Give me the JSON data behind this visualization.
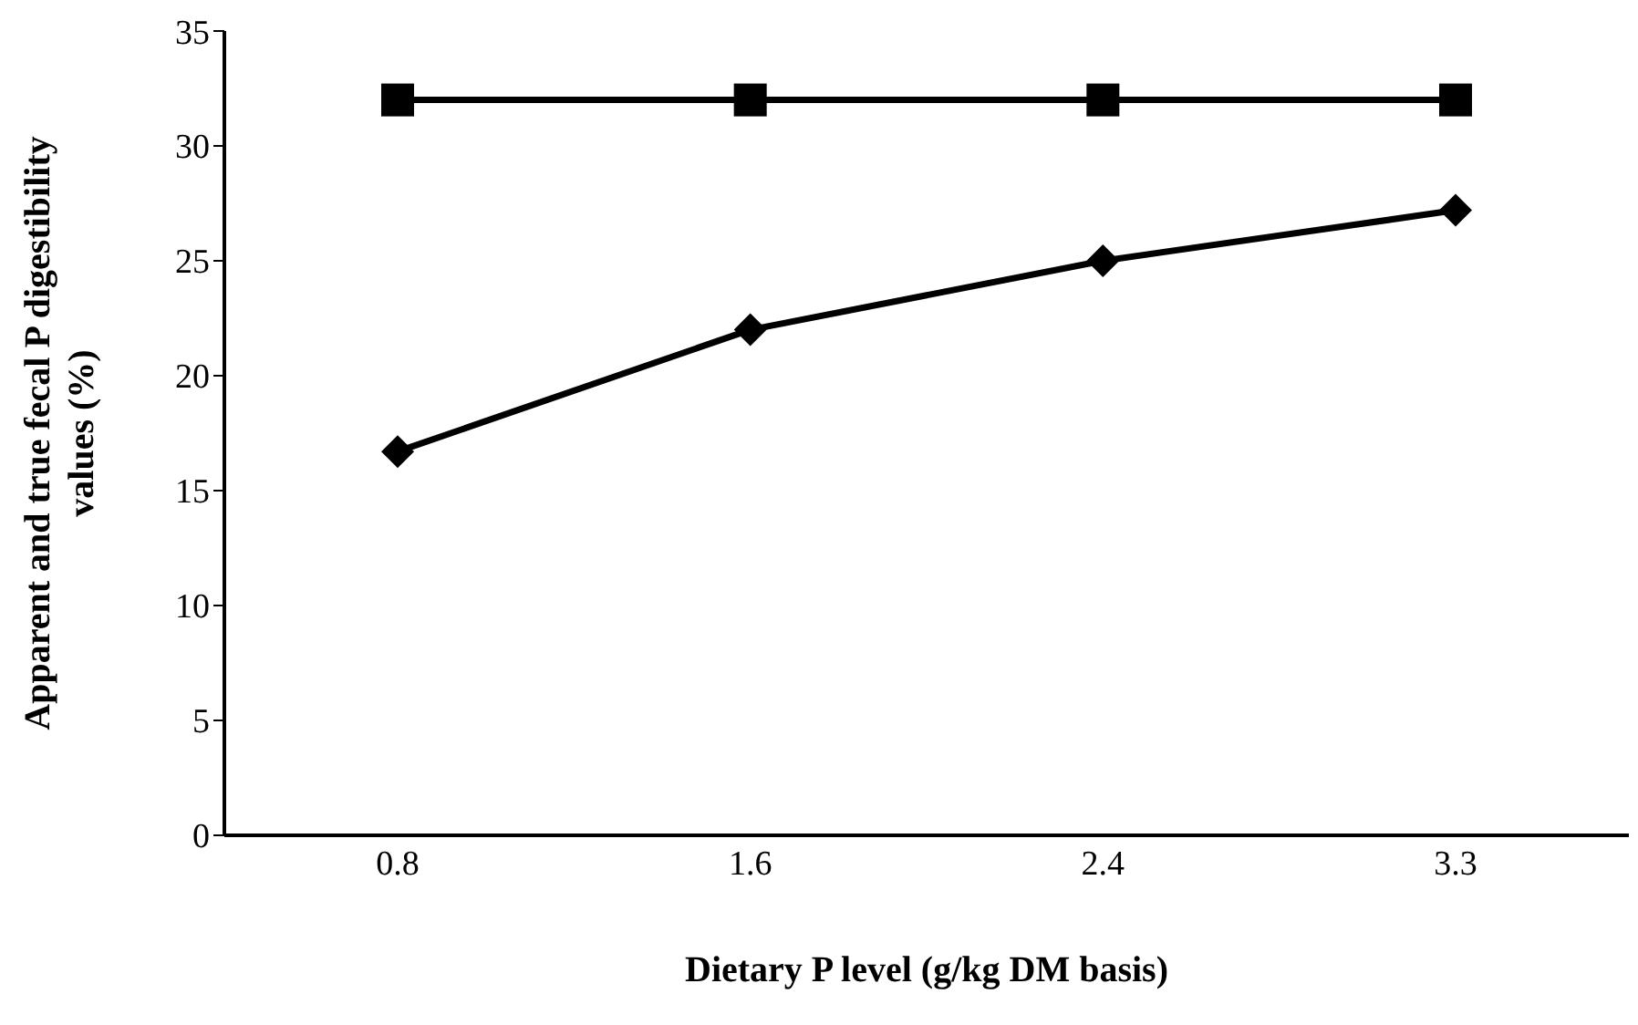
{
  "chart_data": {
    "type": "line",
    "xlabel": "Dietary P level (g/kg DM basis)",
    "ylabel": "Apparent  and true fecal P digestibility\nvalues  (%)",
    "categories": [
      "0.8",
      "1.6",
      "2.4",
      "3.3"
    ],
    "series": [
      {
        "color": "#000000",
        "marker": "square",
        "values": [
          32,
          32,
          32,
          32
        ]
      },
      {
        "color": "#000000",
        "marker": "diamond",
        "values": [
          16.7,
          22.0,
          25.0,
          27.2
        ]
      }
    ],
    "ylim": [
      0,
      35
    ],
    "yticks": [
      0,
      5,
      10,
      15,
      20,
      25,
      30,
      35
    ],
    "grid": false,
    "legend": false,
    "line_style": "solid"
  }
}
